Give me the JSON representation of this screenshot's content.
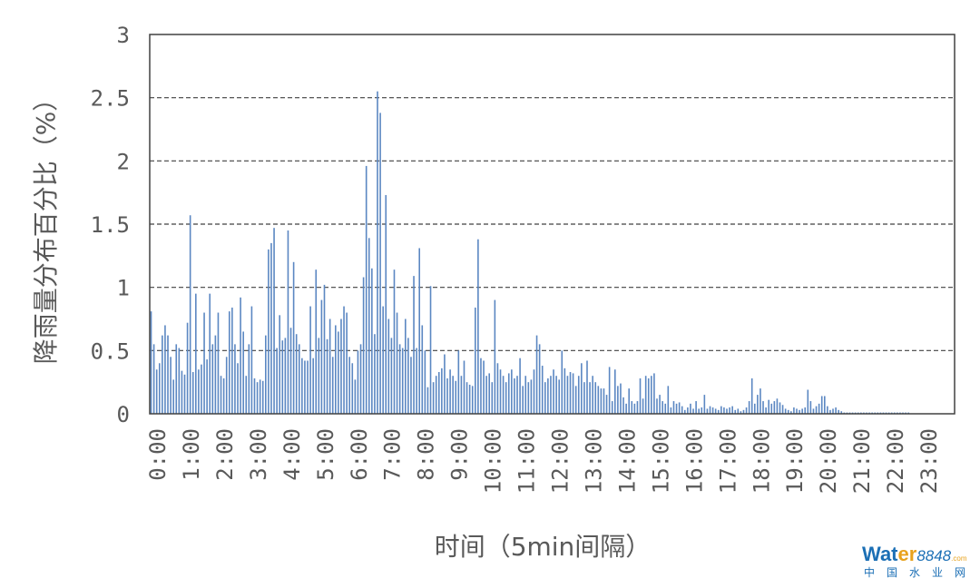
{
  "chart_data": {
    "type": "bar",
    "title": "",
    "xlabel": "时间（5min间隔）",
    "ylabel": "降雨量分布百分比（%）",
    "ylim": [
      0,
      3
    ],
    "y_ticks": [
      "0",
      "0.5",
      "1",
      "1.5",
      "2",
      "2.5",
      "3"
    ],
    "x_ticks": [
      "0:00",
      "1:00",
      "2:00",
      "3:00",
      "4:00",
      "5:00",
      "6:00",
      "7:00",
      "8:00",
      "9:00",
      "10:00",
      "11:00",
      "12:00",
      "13:00",
      "14:00",
      "15:00",
      "16:00",
      "17:00",
      "18:00",
      "19:00",
      "20:00",
      "21:00",
      "22:00",
      "23:00"
    ],
    "grid": "horizontal dashed",
    "bar_color": "#5b87c2",
    "interval_minutes": 5,
    "values": [
      0.81,
      0.55,
      0.35,
      0.4,
      0.62,
      0.7,
      0.62,
      0.45,
      0.27,
      0.55,
      0.52,
      0.34,
      0.31,
      0.72,
      1.57,
      0.33,
      0.95,
      0.35,
      0.39,
      0.8,
      0.43,
      0.95,
      0.55,
      0.62,
      0.8,
      0.3,
      0.28,
      0.45,
      0.81,
      0.84,
      0.55,
      0.4,
      0.92,
      0.65,
      0.3,
      0.55,
      0.85,
      0.28,
      0.25,
      0.27,
      0.26,
      0.62,
      1.3,
      1.35,
      1.47,
      0.52,
      0.78,
      0.58,
      0.6,
      1.45,
      0.68,
      1.2,
      0.63,
      0.55,
      0.44,
      0.42,
      0.42,
      0.85,
      0.44,
      1.14,
      0.6,
      0.9,
      1.02,
      0.59,
      0.75,
      0.45,
      0.7,
      0.65,
      0.75,
      0.85,
      0.8,
      0.45,
      0.4,
      0.27,
      0.5,
      0.55,
      1.08,
      1.96,
      1.39,
      1.15,
      0.63,
      2.55,
      2.38,
      0.85,
      1.73,
      0.75,
      0.6,
      1.14,
      0.8,
      0.55,
      0.52,
      0.75,
      0.6,
      0.45,
      1.09,
      0.52,
      1.31,
      0.7,
      0.5,
      0.21,
      1.01,
      0.25,
      0.3,
      0.33,
      0.36,
      0.47,
      0.28,
      0.35,
      0.3,
      0.26,
      0.5,
      0.3,
      0.42,
      0.25,
      0.23,
      0.22,
      0.84,
      1.38,
      0.44,
      0.42,
      0.3,
      0.32,
      0.25,
      0.9,
      0.4,
      0.35,
      0.3,
      0.25,
      0.32,
      0.35,
      0.28,
      0.3,
      0.44,
      0.22,
      0.3,
      0.25,
      0.27,
      0.35,
      0.62,
      0.55,
      0.38,
      0.25,
      0.28,
      0.3,
      0.35,
      0.3,
      0.27,
      0.5,
      0.36,
      0.3,
      0.33,
      0.32,
      0.22,
      0.3,
      0.4,
      0.25,
      0.42,
      0.25,
      0.3,
      0.25,
      0.22,
      0.2,
      0.2,
      0.15,
      0.37,
      0.1,
      0.35,
      0.22,
      0.24,
      0.13,
      0.08,
      0.2,
      0.1,
      0.08,
      0.1,
      0.28,
      0.12,
      0.3,
      0.28,
      0.3,
      0.32,
      0.12,
      0.15,
      0.1,
      0.08,
      0.22,
      0.05,
      0.1,
      0.08,
      0.09,
      0.06,
      0.03,
      0.05,
      0.08,
      0.04,
      0.1,
      0.04,
      0.05,
      0.15,
      0.04,
      0.06,
      0.05,
      0.04,
      0.03,
      0.06,
      0.05,
      0.04,
      0.05,
      0.06,
      0.03,
      0.04,
      0.02,
      0.03,
      0.05,
      0.1,
      0.28,
      0.08,
      0.15,
      0.2,
      0.1,
      0.05,
      0.11,
      0.08,
      0.1,
      0.12,
      0.09,
      0.07,
      0.04,
      0.03,
      0.02,
      0.05,
      0.04,
      0.03,
      0.04,
      0.05,
      0.19,
      0.1,
      0.04,
      0.06,
      0.08,
      0.14,
      0.14,
      0.06,
      0.03,
      0.04,
      0.05,
      0.03,
      0.02,
      0.01,
      0.01,
      0.01,
      0.01,
      0.01,
      0.01,
      0.01,
      0.01,
      0.01,
      0.01,
      0.01,
      0.01,
      0.01,
      0.01,
      0.01,
      0.01,
      0.01,
      0.01,
      0.01,
      0.01,
      0.01,
      0.01,
      0.01,
      0.01,
      0,
      0,
      0,
      0,
      0,
      0,
      0,
      0,
      0,
      0,
      0,
      0,
      0,
      0,
      0,
      0
    ]
  },
  "watermark": {
    "brand_main": "Wat",
    "brand_accent": "er",
    "brand_num": "8848",
    "brand_suffix": ".com",
    "brand_cn": "中国水业网"
  }
}
